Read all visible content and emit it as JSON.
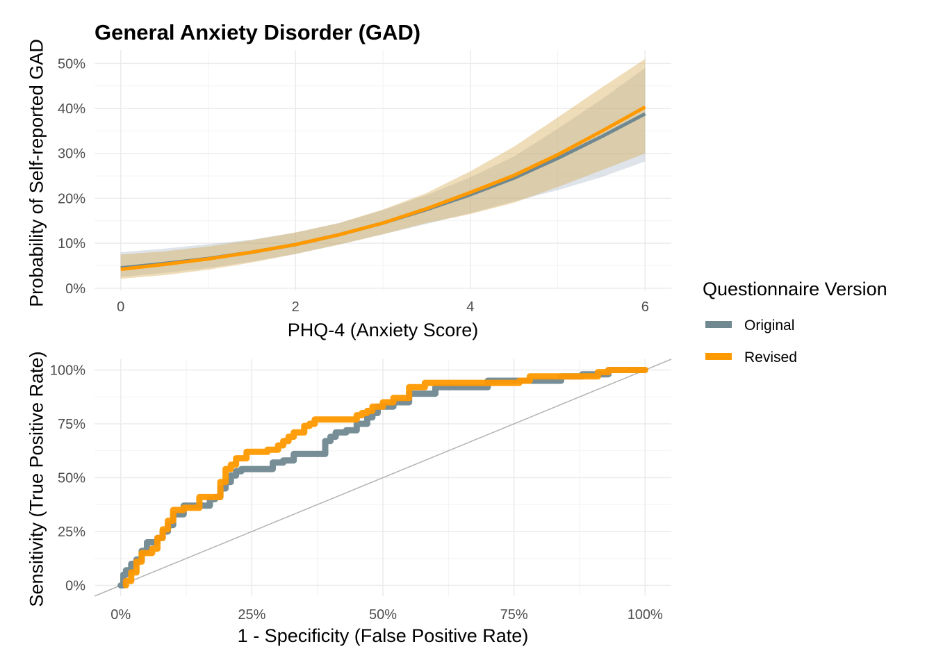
{
  "title": "General Anxiety Disorder (GAD)",
  "legend": {
    "title": "Questionnaire Version",
    "entries": [
      {
        "label": "Original",
        "color": "#708890"
      },
      {
        "label": "Revised",
        "color": "#FF9900"
      }
    ]
  },
  "chart_data": [
    {
      "type": "line",
      "title": "General Anxiety Disorder (GAD)",
      "xlabel": "PHQ-4 (Anxiety Score)",
      "ylabel": "Probability of Self-reported GAD",
      "xlim": [
        -0.3,
        6.3
      ],
      "ylim": [
        -0.005,
        0.53
      ],
      "x_ticks": [
        0,
        2,
        4,
        6
      ],
      "x_tick_labels": [
        "0",
        "2",
        "4",
        "6"
      ],
      "y_ticks": [
        0,
        0.1,
        0.2,
        0.3,
        0.4,
        0.5
      ],
      "y_tick_labels": [
        "0%",
        "10%",
        "20%",
        "30%",
        "40%",
        "50%"
      ],
      "grid": true,
      "ribbons": "95% confidence band per series",
      "x": [
        0,
        0.5,
        1,
        1.5,
        2,
        2.5,
        3,
        3.5,
        4,
        4.5,
        5,
        5.5,
        6
      ],
      "series": [
        {
          "name": "Original",
          "color": "#708890",
          "values": [
            0.045,
            0.055,
            0.066,
            0.08,
            0.097,
            0.119,
            0.145,
            0.175,
            0.208,
            0.245,
            0.289,
            0.337,
            0.388
          ],
          "lower": [
            0.025,
            0.034,
            0.045,
            0.059,
            0.076,
            0.097,
            0.12,
            0.143,
            0.167,
            0.193,
            0.218,
            0.247,
            0.282
          ],
          "upper": [
            0.08,
            0.088,
            0.098,
            0.108,
            0.124,
            0.145,
            0.174,
            0.207,
            0.247,
            0.293,
            0.355,
            0.42,
            0.49
          ]
        },
        {
          "name": "Revised",
          "color": "#FF9900",
          "values": [
            0.042,
            0.053,
            0.065,
            0.08,
            0.097,
            0.119,
            0.145,
            0.177,
            0.213,
            0.251,
            0.297,
            0.349,
            0.403
          ],
          "lower": [
            0.021,
            0.029,
            0.041,
            0.057,
            0.076,
            0.097,
            0.12,
            0.145,
            0.165,
            0.19,
            0.225,
            0.262,
            0.3
          ],
          "upper": [
            0.075,
            0.082,
            0.093,
            0.107,
            0.124,
            0.145,
            0.175,
            0.212,
            0.26,
            0.315,
            0.38,
            0.446,
            0.51
          ]
        }
      ]
    },
    {
      "type": "line",
      "subtype": "roc",
      "xlabel": "1 - Specificity (False Positive Rate)",
      "ylabel": "Sensitivity (True Positive Rate)",
      "xlim": [
        -0.05,
        1.05
      ],
      "ylim": [
        -0.05,
        1.05
      ],
      "x_ticks": [
        0,
        0.25,
        0.5,
        0.75,
        1.0
      ],
      "x_tick_labels": [
        "0%",
        "25%",
        "50%",
        "75%",
        "100%"
      ],
      "y_ticks": [
        0,
        0.25,
        0.5,
        0.75,
        1.0
      ],
      "y_tick_labels": [
        "0%",
        "25%",
        "50%",
        "75%",
        "100%"
      ],
      "grid": true,
      "reference_line": {
        "x": [
          -0.05,
          1.05
        ],
        "y": [
          -0.05,
          1.05
        ],
        "color": "#B3B3B3"
      },
      "series": [
        {
          "name": "Original",
          "color": "#708890",
          "x": [
            0.0,
            0.005,
            0.01,
            0.02,
            0.03,
            0.04,
            0.05,
            0.06,
            0.07,
            0.08,
            0.09,
            0.1,
            0.12,
            0.14,
            0.17,
            0.18,
            0.19,
            0.2,
            0.21,
            0.22,
            0.23,
            0.28,
            0.29,
            0.31,
            0.33,
            0.36,
            0.39,
            0.4,
            0.41,
            0.43,
            0.45,
            0.47,
            0.48,
            0.49,
            0.52,
            0.55,
            0.6,
            0.65,
            0.7,
            0.8,
            0.84,
            0.88,
            0.93,
            1.0
          ],
          "y": [
            0.0,
            0.05,
            0.07,
            0.1,
            0.12,
            0.16,
            0.2,
            0.2,
            0.22,
            0.25,
            0.28,
            0.33,
            0.37,
            0.37,
            0.4,
            0.41,
            0.45,
            0.48,
            0.51,
            0.53,
            0.54,
            0.54,
            0.57,
            0.58,
            0.61,
            0.61,
            0.67,
            0.69,
            0.71,
            0.72,
            0.75,
            0.78,
            0.8,
            0.83,
            0.85,
            0.89,
            0.92,
            0.92,
            0.95,
            0.95,
            0.97,
            0.98,
            1.0,
            1.0
          ]
        },
        {
          "name": "Revised",
          "color": "#FF9900",
          "x": [
            0.01,
            0.01,
            0.02,
            0.03,
            0.04,
            0.06,
            0.07,
            0.08,
            0.09,
            0.1,
            0.12,
            0.15,
            0.17,
            0.19,
            0.2,
            0.21,
            0.22,
            0.24,
            0.27,
            0.28,
            0.3,
            0.31,
            0.32,
            0.33,
            0.35,
            0.36,
            0.37,
            0.43,
            0.45,
            0.46,
            0.47,
            0.48,
            0.5,
            0.52,
            0.55,
            0.58,
            0.65,
            0.76,
            0.78,
            0.85,
            0.91,
            0.93,
            1.0
          ],
          "y": [
            0.0,
            0.02,
            0.06,
            0.11,
            0.15,
            0.17,
            0.22,
            0.26,
            0.3,
            0.35,
            0.36,
            0.41,
            0.41,
            0.48,
            0.54,
            0.56,
            0.59,
            0.62,
            0.62,
            0.63,
            0.65,
            0.67,
            0.69,
            0.71,
            0.74,
            0.75,
            0.77,
            0.77,
            0.79,
            0.8,
            0.81,
            0.83,
            0.85,
            0.87,
            0.92,
            0.94,
            0.94,
            0.95,
            0.97,
            0.97,
            0.99,
            1.0,
            1.0
          ]
        }
      ]
    }
  ]
}
